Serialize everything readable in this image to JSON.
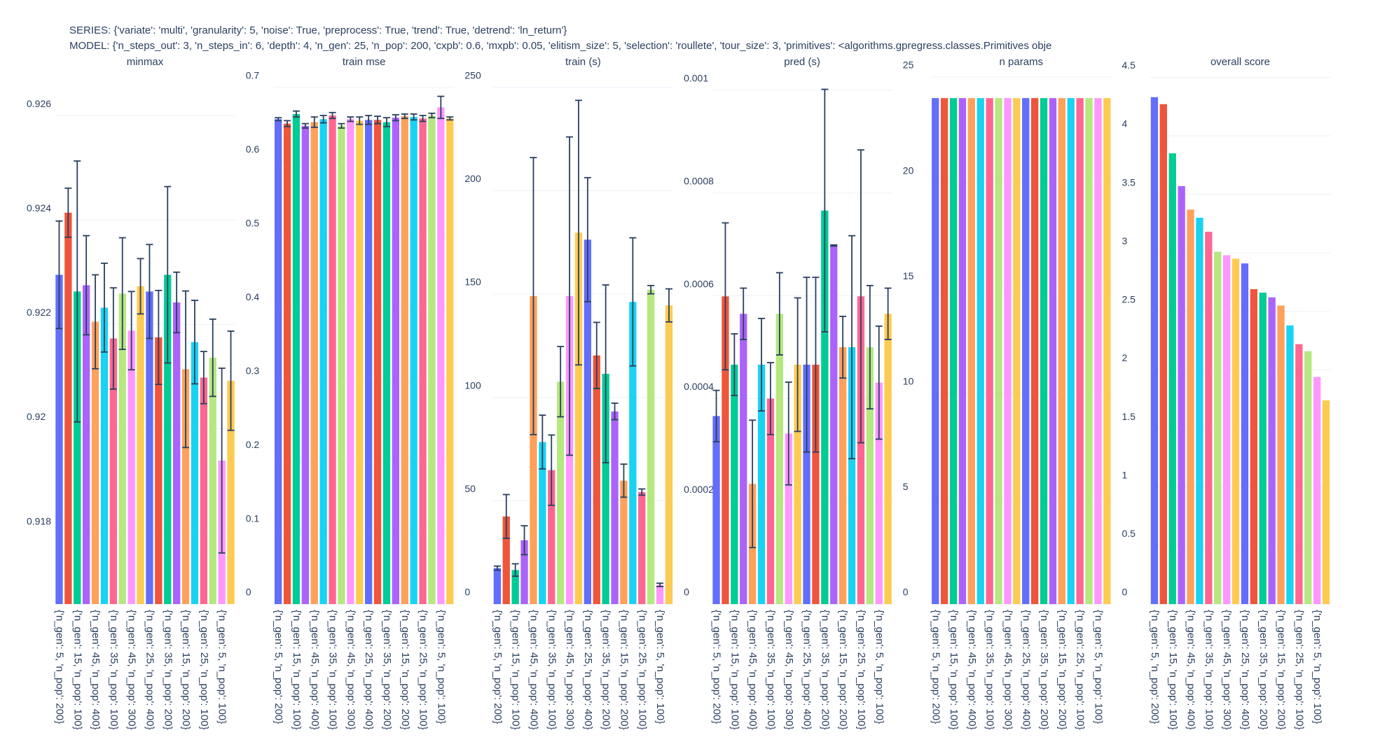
{
  "header": {
    "series": "SERIES: {'variate': 'multi', 'granularity': 5, 'noise': True, 'preprocess': True, 'trend': True, 'detrend': 'ln_return'}",
    "model": "MODEL: {'n_steps_out': 3, 'n_steps_in': 6, 'depth': 4, 'n_gen': 25, 'n_pop': 200, 'cxpb': 0.6, 'mxpb': 0.05, 'elitism_size': 5, 'selection': 'roullete', 'tour_size': 3, 'primitives': <algorithms.gpregress.classes.Primitives obje"
  },
  "chart_data": [
    {
      "type": "bar",
      "title": "minmax",
      "categories": [
        "{'n_gen': 5, 'n_pop': 200}",
        null,
        "{'n_gen': 15, 'n_pop': 100}",
        null,
        "{'n_gen': 45, 'n_pop': 400}",
        null,
        "{'n_gen': 35, 'n_pop': 100}",
        null,
        "{'n_gen': 45, 'n_pop': 300}",
        null,
        "{'n_gen': 25, 'n_pop': 400}",
        null,
        "{'n_gen': 35, 'n_pop': 200}",
        null,
        "{'n_gen': 15, 'n_pop': 200}",
        null,
        "{'n_gen': 25, 'n_pop': 100}",
        null,
        "{'n_gen': 5, 'n_pop': 100}",
        null
      ],
      "values": [
        0.92295,
        0.92414,
        0.92263,
        0.92275,
        0.92205,
        0.92232,
        0.92173,
        0.92259,
        0.92188,
        0.92273,
        0.92263,
        0.92175,
        0.92295,
        0.92242,
        0.92114,
        0.92166,
        0.92098,
        0.92136,
        0.91939,
        0.92092
      ],
      "errors": [
        0.00103,
        0.00047,
        0.0025,
        0.00095,
        0.0009,
        0.00085,
        0.00097,
        0.00107,
        0.00075,
        0.00053,
        0.0009,
        0.0009,
        0.00169,
        0.00058,
        0.0015,
        0.0008,
        0.0005,
        0.00074,
        0.00177,
        0.00095
      ],
      "colors": [
        "#636efa",
        "#EF553B",
        "#00cc96",
        "#ab63fa",
        "#FFA15A",
        "#19d3f3",
        "#FF6692",
        "#B6E880",
        "#FF97FF",
        "#FECB52"
      ],
      "ylim": [
        0.91664,
        0.92678
      ],
      "yticks": [
        0.918,
        0.92,
        0.922,
        0.924,
        0.926
      ],
      "grid": true
    },
    {
      "type": "bar",
      "title": "train mse",
      "categories": [
        "{'n_gen': 5, 'n_pop': 200}",
        null,
        "{'n_gen': 15, 'n_pop': 100}",
        null,
        "{'n_gen': 45, 'n_pop': 400}",
        null,
        "{'n_gen': 35, 'n_pop': 100}",
        null,
        "{'n_gen': 45, 'n_pop': 300}",
        null,
        "{'n_gen': 25, 'n_pop': 400}",
        null,
        "{'n_gen': 35, 'n_pop': 200}",
        null,
        "{'n_gen': 15, 'n_pop': 200}",
        null,
        "{'n_gen': 25, 'n_pop': 100}",
        null,
        "{'n_gen': 5, 'n_pop': 100}",
        null
      ],
      "values": [
        0.657,
        0.651,
        0.664,
        0.648,
        0.653,
        0.657,
        0.662,
        0.648,
        0.657,
        0.655,
        0.656,
        0.656,
        0.653,
        0.659,
        0.661,
        0.66,
        0.658,
        0.662,
        0.673,
        0.658
      ],
      "errors": [
        0.002,
        0.004,
        0.004,
        0.003,
        0.007,
        0.005,
        0.004,
        0.003,
        0.003,
        0.005,
        0.006,
        0.005,
        0.006,
        0.004,
        0.003,
        0.004,
        0.004,
        0.003,
        0.015,
        0.002
      ],
      "colors": [
        "#636efa",
        "#EF553B",
        "#00cc96",
        "#ab63fa",
        "#FFA15A",
        "#19d3f3",
        "#FF6692",
        "#B6E880",
        "#FF97FF",
        "#FECB52"
      ],
      "ylim": [
        0,
        0.717
      ],
      "yticks": [
        0,
        0.1,
        0.2,
        0.3,
        0.4,
        0.5,
        0.6,
        0.7
      ],
      "grid": true
    },
    {
      "type": "bar",
      "title": "train (s)",
      "categories": [
        "{'n_gen': 5, 'n_pop': 200}",
        null,
        "{'n_gen': 15, 'n_pop': 100}",
        null,
        "{'n_gen': 45, 'n_pop': 400}",
        null,
        "{'n_gen': 35, 'n_pop': 100}",
        null,
        "{'n_gen': 45, 'n_pop': 300}",
        null,
        "{'n_gen': 25, 'n_pop': 400}",
        null,
        "{'n_gen': 35, 'n_pop': 200}",
        null,
        "{'n_gen': 15, 'n_pop': 200}",
        null,
        "{'n_gen': 25, 'n_pop': 100}",
        null,
        "{'n_gen': 5, 'n_pop': 100}",
        null
      ],
      "values": [
        17.4,
        42.4,
        16.5,
        30.9,
        149,
        78.4,
        64.8,
        107.6,
        149,
        179.7,
        176.3,
        120.3,
        111.4,
        93.2,
        59.7,
        146.2,
        54.2,
        152.1,
        9.3,
        144.5
      ],
      "errors": [
        1,
        10.6,
        3,
        7,
        67,
        13,
        17,
        17,
        77,
        64,
        30,
        16,
        43,
        4,
        8,
        31,
        1.5,
        2,
        0.8,
        8
      ],
      "colors": [
        "#636efa",
        "#EF553B",
        "#00cc96",
        "#ab63fa",
        "#FFA15A",
        "#19d3f3",
        "#FF6692",
        "#B6E880",
        "#FF97FF",
        "#FECB52"
      ],
      "ylim": [
        0,
        256
      ],
      "yticks": [
        0,
        50,
        100,
        150,
        200,
        250
      ],
      "grid": true
    },
    {
      "type": "bar",
      "title": "pred (s)",
      "categories": [
        "{'n_gen': 5, 'n_pop': 200}",
        null,
        "{'n_gen': 15, 'n_pop': 100}",
        null,
        "{'n_gen': 45, 'n_pop': 400}",
        null,
        "{'n_gen': 35, 'n_pop': 100}",
        null,
        "{'n_gen': 45, 'n_pop': 300}",
        null,
        "{'n_gen': 25, 'n_pop': 400}",
        null,
        "{'n_gen': 35, 'n_pop': 200}",
        null,
        "{'n_gen': 15, 'n_pop': 200}",
        null,
        "{'n_gen': 25, 'n_pop': 100}",
        null,
        "{'n_gen': 5, 'n_pop': 100}",
        null
      ],
      "values": [
        0.000366,
        0.000599,
        0.000466,
        0.000565,
        0.000234,
        0.000466,
        0.0004,
        0.000565,
        0.000332,
        0.000466,
        0.000466,
        0.000466,
        0.000766,
        0.000698,
        0.0005,
        0.0005,
        0.000599,
        0.0005,
        0.000431,
        0.000565
      ],
      "errors": [
        5e-05,
        0.000143,
        6e-05,
        5e-05,
        0.000124,
        9e-05,
        7e-05,
        8e-05,
        0.0001,
        0.00013,
        0.00017,
        0.00017,
        0.000236,
        1e-06,
        6e-05,
        0.000217,
        0.000285,
        0.00012,
        0.00011,
        5e-05
      ],
      "colors": [
        "#636efa",
        "#EF553B",
        "#00cc96",
        "#ab63fa",
        "#FFA15A",
        "#19d3f3",
        "#FF6692",
        "#B6E880",
        "#FF97FF",
        "#FECB52"
      ],
      "ylim": [
        0,
        0.00103
      ],
      "yticks": [
        0,
        0.0002,
        0.0004,
        0.0006,
        0.0008,
        0.001
      ],
      "grid": true
    },
    {
      "type": "bar",
      "title": "n params",
      "categories": [
        "{'n_gen': 5, 'n_pop': 200}",
        null,
        "{'n_gen': 15, 'n_pop': 100}",
        null,
        "{'n_gen': 45, 'n_pop': 400}",
        null,
        "{'n_gen': 35, 'n_pop': 100}",
        null,
        "{'n_gen': 45, 'n_pop': 300}",
        null,
        "{'n_gen': 25, 'n_pop': 400}",
        null,
        "{'n_gen': 35, 'n_pop': 200}",
        null,
        "{'n_gen': 15, 'n_pop': 200}",
        null,
        "{'n_gen': 25, 'n_pop': 100}",
        null,
        "{'n_gen': 5, 'n_pop': 100}",
        null
      ],
      "values": [
        24,
        24,
        24,
        24,
        24,
        24,
        24,
        24,
        24,
        24,
        24,
        24,
        24,
        24,
        24,
        24,
        24,
        24,
        24,
        24
      ],
      "colors": [
        "#636efa",
        "#EF553B",
        "#00cc96",
        "#ab63fa",
        "#FFA15A",
        "#19d3f3",
        "#FF6692",
        "#B6E880",
        "#FF97FF",
        "#FECB52"
      ],
      "ylim": [
        0,
        25.1
      ],
      "yticks": [
        0,
        5,
        10,
        15,
        20,
        25
      ],
      "grid": true
    },
    {
      "type": "bar",
      "title": "overall score",
      "categories": [
        "{'n_gen': 5, 'n_pop': 200}",
        null,
        "{'n_gen': 15, 'n_pop': 100}",
        null,
        "{'n_gen': 45, 'n_pop': 400}",
        null,
        "{'n_gen': 35, 'n_pop': 100}",
        null,
        "{'n_gen': 45, 'n_pop': 300}",
        null,
        "{'n_gen': 25, 'n_pop': 400}",
        null,
        "{'n_gen': 35, 'n_pop': 200}",
        null,
        "{'n_gen': 15, 'n_pop': 200}",
        null,
        "{'n_gen': 25, 'n_pop': 100}",
        null,
        "{'n_gen': 5, 'n_pop': 100}",
        null
      ],
      "values": [
        4.33,
        4.27,
        3.85,
        3.57,
        3.37,
        3.3,
        3.18,
        3.01,
        2.98,
        2.95,
        2.91,
        2.69,
        2.66,
        2.62,
        2.55,
        2.38,
        2.22,
        2.16,
        1.94,
        1.74
      ],
      "colors": [
        "#636efa",
        "#EF553B",
        "#00cc96",
        "#ab63fa",
        "#FFA15A",
        "#19d3f3",
        "#FF6692",
        "#B6E880",
        "#FF97FF",
        "#FECB52"
      ],
      "ylim": [
        0,
        4.52
      ],
      "yticks": [
        0,
        0.5,
        1,
        1.5,
        2,
        2.5,
        3,
        3.5,
        4,
        4.5
      ],
      "grid": true
    }
  ]
}
